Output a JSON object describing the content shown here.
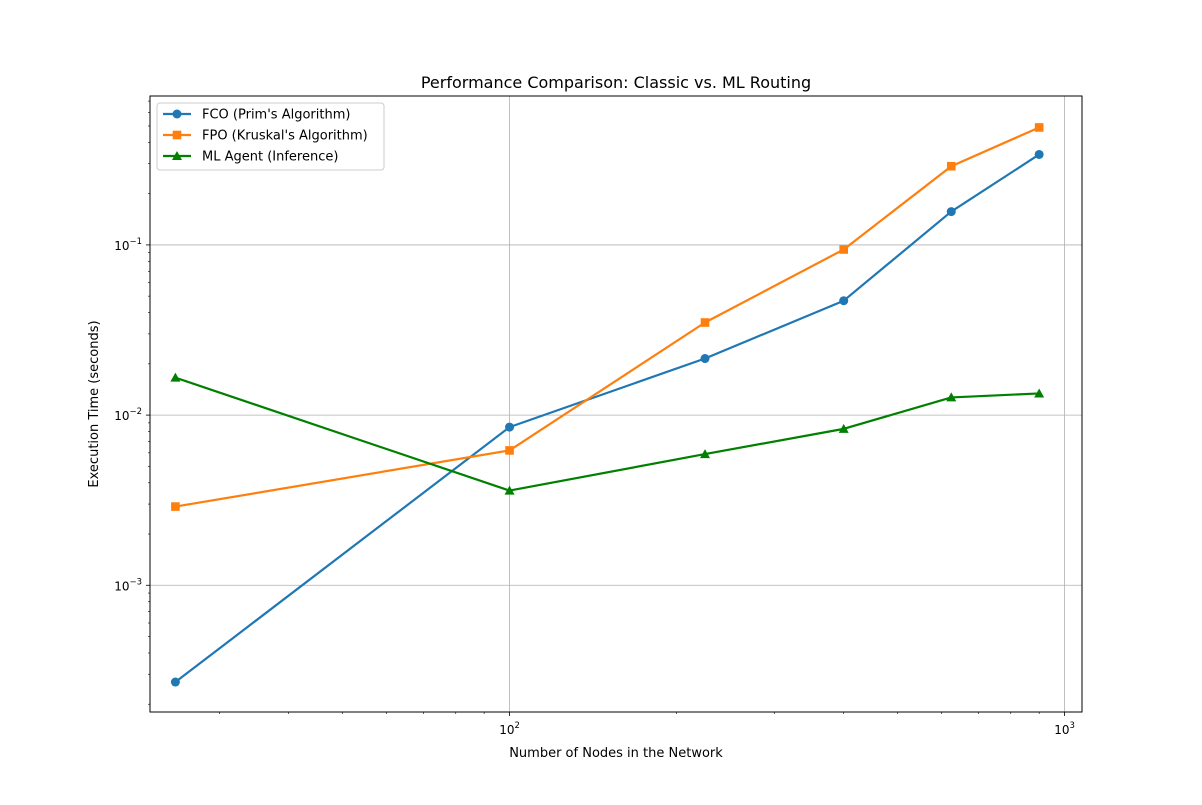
{
  "chart_data": {
    "type": "line",
    "title": "Performance Comparison: Classic vs. ML Routing",
    "xlabel": "Number of Nodes in the Network",
    "ylabel": "Execution Time (seconds)",
    "xscale": "log",
    "yscale": "log",
    "xlim": [
      22.5,
      1075
    ],
    "ylim": [
      0.00018,
      0.75
    ],
    "grid": true,
    "legend_position": "top-left",
    "x_ticks": [
      {
        "value": 100,
        "base": "10",
        "exp": "2"
      },
      {
        "value": 1000,
        "base": "10",
        "exp": "3"
      }
    ],
    "y_ticks": [
      {
        "value": 0.001,
        "base": "10",
        "exp": "−3"
      },
      {
        "value": 0.01,
        "base": "10",
        "exp": "−2"
      },
      {
        "value": 0.1,
        "base": "10",
        "exp": "−1"
      }
    ],
    "x": [
      25,
      100,
      225,
      400,
      625,
      900
    ],
    "series": [
      {
        "name": "FCO (Prim's Algorithm)",
        "color": "#1f77b4",
        "marker": "circle",
        "values": [
          0.00027,
          0.0085,
          0.0215,
          0.047,
          0.157,
          0.34
        ]
      },
      {
        "name": "FPO (Kruskal's Algorithm)",
        "color": "#ff7f0e",
        "marker": "square",
        "values": [
          0.0029,
          0.0062,
          0.035,
          0.094,
          0.29,
          0.49
        ]
      },
      {
        "name": "ML Agent (Inference)",
        "color": "#008000",
        "marker": "triangle",
        "values": [
          0.0166,
          0.0036,
          0.0059,
          0.0083,
          0.0127,
          0.0134
        ]
      }
    ]
  }
}
